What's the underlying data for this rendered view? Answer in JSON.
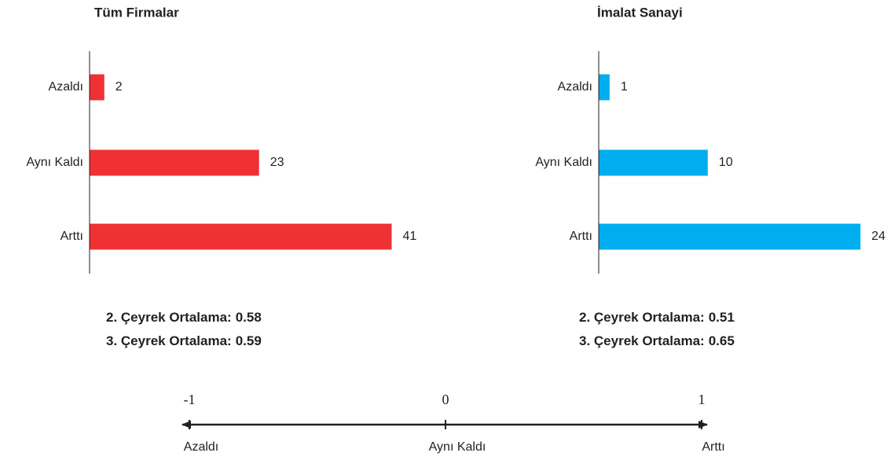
{
  "chart_data": [
    {
      "type": "bar",
      "orientation": "horizontal",
      "title": "Tüm Firmalar",
      "categories": [
        "Azaldı",
        "Aynı Kaldı",
        "Arttı"
      ],
      "values": [
        2,
        23,
        41
      ],
      "color": "#ef3134",
      "xlim": [
        0,
        45
      ],
      "notes": [
        {
          "label": "2. Çeyrek Ortalama:",
          "value": 0.58
        },
        {
          "label": "3. Çeyrek Ortalama:",
          "value": 0.59
        }
      ]
    },
    {
      "type": "bar",
      "orientation": "horizontal",
      "title": "İmalat Sanayi",
      "categories": [
        "Azaldı",
        "Aynı Kaldı",
        "Arttı"
      ],
      "values": [
        1,
        10,
        24
      ],
      "color": "#00aeef",
      "xlim": [
        0,
        25
      ],
      "notes": [
        {
          "label": "2. Çeyrek Ortalama:",
          "value": 0.51
        },
        {
          "label": "3. Çeyrek Ortalama:",
          "value": 0.65
        }
      ]
    }
  ],
  "scale": {
    "ticks": [
      -1,
      0,
      1
    ],
    "labels": [
      "Azaldı",
      "Aynı Kaldı",
      "Arttı"
    ]
  }
}
